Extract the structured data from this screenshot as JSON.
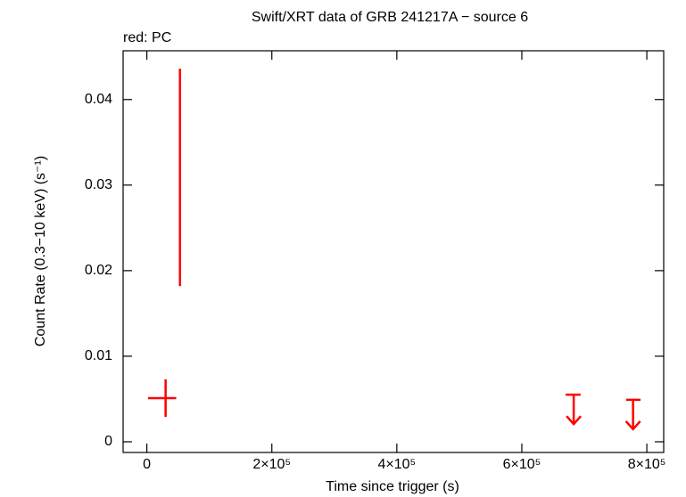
{
  "chart_data": {
    "type": "scatter",
    "title": "Swift/XRT data of GRB 241217A − source 6",
    "legend_text": "red: PC",
    "x_label": "Time since trigger (s)",
    "y_label": "Count Rate (0.3−10 keV) (s⁻¹)",
    "xlim": [
      -38000,
      827000
    ],
    "ylim": [
      -0.00125,
      0.0457
    ],
    "xticks": [
      0,
      {
        "value": 200000,
        "label": "2×10⁵"
      },
      {
        "value": 400000,
        "label": "4×10⁵"
      },
      {
        "value": 600000,
        "label": "6×10⁵"
      },
      {
        "value": 800000,
        "label": "8×10⁵"
      }
    ],
    "yticks": [
      0,
      0.01,
      0.02,
      0.03,
      0.04
    ],
    "series": [
      {
        "color": "#ff0000",
        "x": [
          30000,
          53000
        ],
        "x_minus": [
          28000,
          500
        ],
        "x_plus": [
          17000,
          500
        ],
        "values": [
          0.0051,
          0.0309
        ],
        "yerr": [
          0.0022,
          0.0127
        ]
      }
    ],
    "upper_limits": {
      "color": "#ff0000",
      "x": [
        683000,
        778000
      ],
      "x_minus": [
        13000,
        11000
      ],
      "x_plus": [
        11000,
        12000
      ],
      "values": [
        0.0055,
        0.0049
      ]
    }
  }
}
